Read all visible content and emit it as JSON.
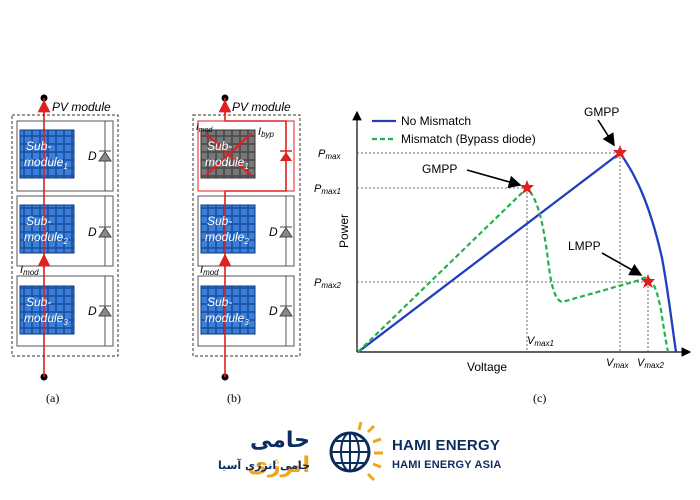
{
  "panel_a": {
    "module_label": "PV module",
    "submodules": [
      {
        "line1": "Sub-",
        "line2": "module",
        "sub": "1"
      },
      {
        "line1": "Sub-",
        "line2": "module",
        "sub": "2"
      },
      {
        "line1": "Sub-",
        "line2": "module",
        "sub": "3"
      }
    ],
    "diode_label": "D",
    "current_label": "I",
    "current_sub": "mod",
    "caption": "(a)"
  },
  "panel_b": {
    "module_label": "PV module",
    "submodules": [
      {
        "line1": "Sub-",
        "line2": "module",
        "sub": "1"
      },
      {
        "line1": "Sub-",
        "line2": "module",
        "sub": "2"
      },
      {
        "line1": "Sub-",
        "line2": "module",
        "sub": "3"
      }
    ],
    "diode_label": "D",
    "current_label": "I",
    "current_sub": "mod",
    "bypass_label": "I",
    "bypass_sub": "byp",
    "caption": "(b)"
  },
  "panel_c": {
    "legend": {
      "no_mismatch": "No Mismatch",
      "mismatch": "Mismatch (Bypass diode)"
    },
    "ylabel": "Power",
    "xlabel": "Voltage",
    "y_ticks": [
      {
        "main": "P",
        "sub": "max"
      },
      {
        "main": "P",
        "sub": "max1"
      },
      {
        "main": "P",
        "sub": "max2"
      }
    ],
    "x_ticks": [
      {
        "main": "V",
        "sub": "max1"
      },
      {
        "main": "V",
        "sub": "max"
      },
      {
        "main": "V",
        "sub": "max2"
      }
    ],
    "annotations": {
      "gmpp_blue": "GMPP",
      "gmpp_green": "GMPP",
      "lmpp": "LMPP"
    },
    "caption": "(c)",
    "colors": {
      "no_mismatch": "#1f3fbf",
      "mismatch": "#22b14c",
      "marker": "#e02020"
    }
  },
  "branding": {
    "fa_title_part1": "حامی",
    "fa_title_part2": "انرژی",
    "fa_subtitle": "حامی انرژی آسیا",
    "en_title": "HAMI ENERGY",
    "en_subtitle": "HAMI ENERGY ASIA",
    "colors": {
      "navy": "#0d2c5e",
      "gold": "#f2a51a"
    }
  }
}
